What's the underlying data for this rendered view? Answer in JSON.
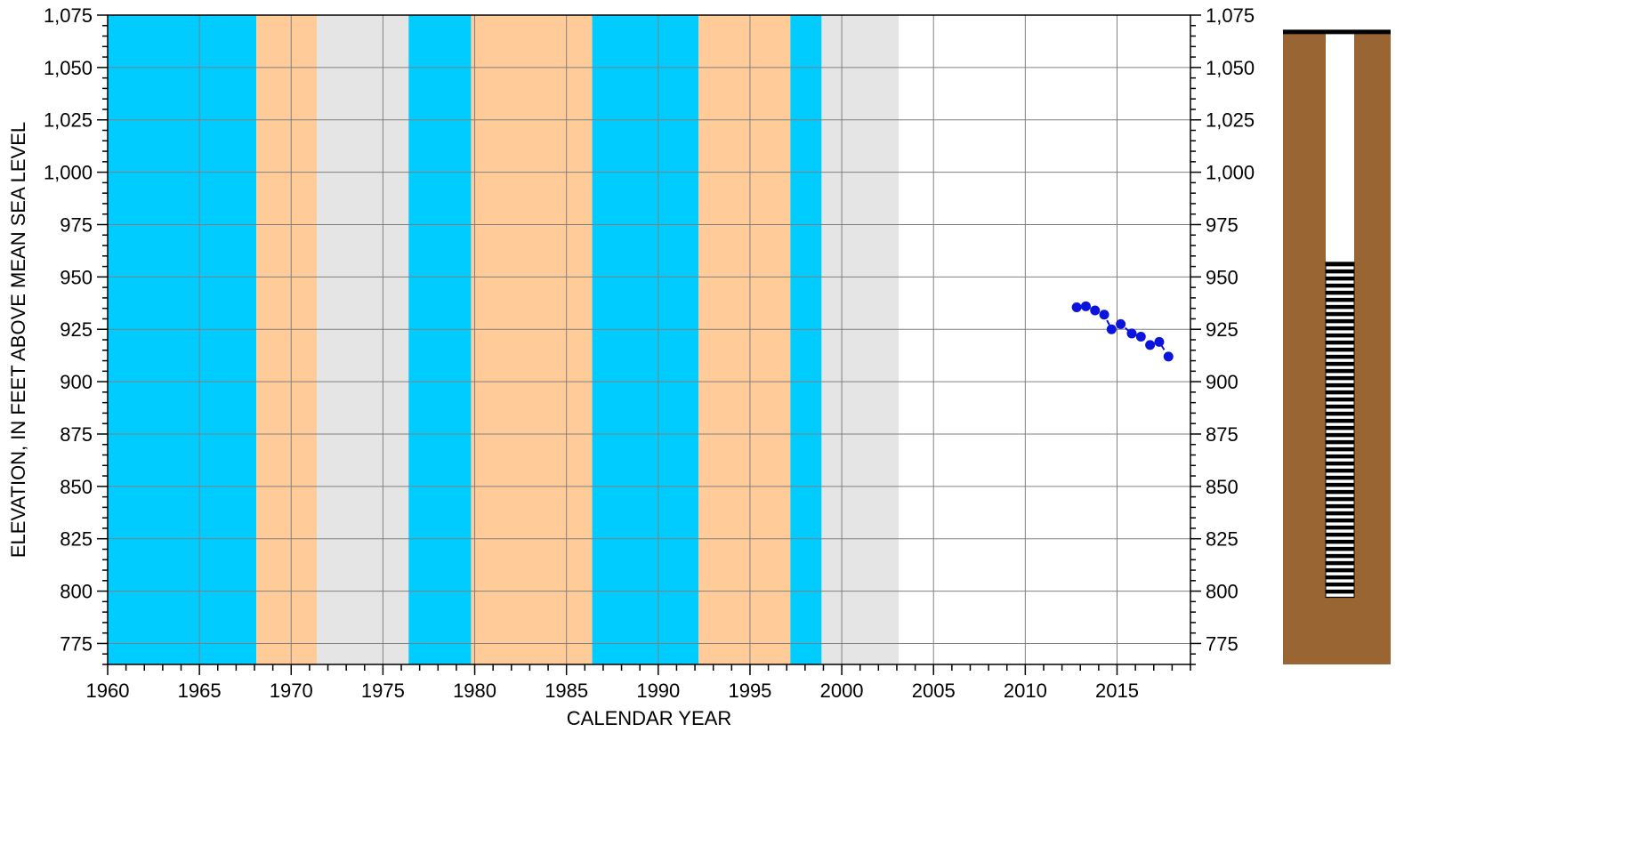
{
  "chart_data": {
    "type": "scatter",
    "title": "",
    "xlabel": "CALENDAR YEAR",
    "ylabel": "ELEVATION, IN FEET ABOVE MEAN SEA LEVEL",
    "xlim": [
      1960,
      2019
    ],
    "ylim": [
      765,
      1075
    ],
    "x_ticks": [
      1960,
      1965,
      1970,
      1975,
      1980,
      1985,
      1990,
      1995,
      2000,
      2005,
      2010,
      2015
    ],
    "x_tick_labels": [
      "1960",
      "1965",
      "1970",
      "1975",
      "1980",
      "1985",
      "1990",
      "1995",
      "2000",
      "2005",
      "2010",
      "2015"
    ],
    "y_ticks": [
      775,
      800,
      825,
      850,
      875,
      900,
      925,
      950,
      975,
      1000,
      1025,
      1050,
      1075
    ],
    "y_tick_labels": [
      "775",
      "800",
      "825",
      "850",
      "875",
      "900",
      "925",
      "950",
      "975",
      "1,000",
      "1,025",
      "1,050",
      "1,075"
    ],
    "right_axis_mirrors_left": true,
    "grid": true,
    "bands": [
      {
        "start": 1960.0,
        "end": 1968.1,
        "color": "#00CCFF"
      },
      {
        "start": 1968.1,
        "end": 1971.4,
        "color": "#FFCC99"
      },
      {
        "start": 1971.4,
        "end": 1976.4,
        "color": "#E5E5E5"
      },
      {
        "start": 1976.4,
        "end": 1979.8,
        "color": "#00CCFF"
      },
      {
        "start": 1979.8,
        "end": 1986.4,
        "color": "#FFCC99"
      },
      {
        "start": 1986.4,
        "end": 1992.2,
        "color": "#00CCFF"
      },
      {
        "start": 1992.2,
        "end": 1997.2,
        "color": "#FFCC99"
      },
      {
        "start": 1997.2,
        "end": 1998.9,
        "color": "#00CCFF"
      },
      {
        "start": 1998.9,
        "end": 2003.1,
        "color": "#E5E5E5"
      }
    ],
    "series": [
      {
        "marker_color": "#0A14DC",
        "line": "dashed",
        "x": [
          2012.8,
          2013.3,
          2013.8,
          2014.3,
          2014.7,
          2015.2,
          2015.8,
          2016.3,
          2016.8,
          2017.3,
          2017.8
        ],
        "y": [
          935.5,
          936,
          934,
          932,
          925,
          927.5,
          923,
          921.5,
          917.5,
          919,
          912
        ]
      }
    ]
  },
  "well_diagram": {
    "ground_color": "#996633",
    "casing_color": "#FFFFFF",
    "screen_color": "#000000",
    "top_elevation": 1067,
    "screen_top_elevation": 957,
    "screen_bottom_elevation": 797,
    "bottom_elevation": 765
  }
}
